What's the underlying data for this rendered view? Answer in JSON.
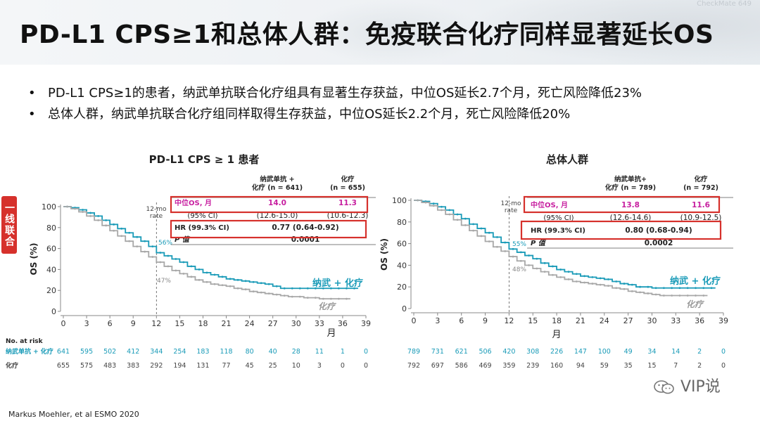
{
  "header": {
    "title": "PD-L1 CPS≥1和总体人群：免疫联合化疗同样显著延长OS",
    "watermark": "CheckMate 649"
  },
  "bullets": [
    "PD-L1 CPS≥1的患者，纳武单抗联合化疗组具有显著生存获益，中位OS延长2.7个月，死亡风险降低23%",
    "总体人群，纳武单抗联合化疗组同样取得生存获益，中位OS延长2.2个月，死亡风险降低20%"
  ],
  "side_tag": "一线联合",
  "footer": "Markus Moehler, et al  ESMO 2020",
  "wechat_label": "VIP说",
  "colors": {
    "nivo": "#1a9bb8",
    "chemo": "#a8a8a8",
    "highlight": "#d6312c",
    "median": "#c71fa0"
  },
  "chart_data": [
    {
      "type": "line",
      "title": "PD-L1 CPS ≥ 1 患者",
      "xlabel": "月",
      "ylabel": "OS (%)",
      "xlim": [
        0,
        39
      ],
      "ylim": [
        0,
        100
      ],
      "xticks": [
        0,
        3,
        6,
        9,
        12,
        15,
        18,
        21,
        24,
        27,
        30,
        33,
        36,
        39
      ],
      "yticks": [
        0,
        20,
        40,
        60,
        80,
        100
      ],
      "landmark_label": "12-mo\nrate",
      "landmark_values": [
        "56%",
        "47%"
      ],
      "series": [
        {
          "name": "纳武 + 化疗",
          "x": [
            0,
            1,
            2,
            3,
            4,
            5,
            6,
            7,
            8,
            9,
            10,
            11,
            12,
            13,
            14,
            15,
            16,
            17,
            18,
            19,
            20,
            21,
            22,
            23,
            24,
            25,
            26,
            27,
            28,
            29,
            30,
            31,
            32,
            33,
            34,
            35,
            36,
            37,
            38
          ],
          "y": [
            100,
            99,
            97,
            94,
            91,
            87,
            83,
            79,
            75,
            71,
            67,
            62,
            56,
            53,
            50,
            47,
            43,
            40,
            37,
            35,
            33,
            31,
            30,
            29,
            28,
            27,
            26,
            24,
            22,
            22,
            22,
            22,
            22,
            22,
            22,
            22,
            22,
            22,
            22
          ]
        },
        {
          "name": "化疗",
          "x": [
            0,
            1,
            2,
            3,
            4,
            5,
            6,
            7,
            8,
            9,
            10,
            11,
            12,
            13,
            14,
            15,
            16,
            17,
            18,
            19,
            20,
            21,
            22,
            23,
            24,
            25,
            26,
            27,
            28,
            29,
            30,
            31,
            32,
            33,
            34,
            35,
            36,
            37
          ],
          "y": [
            100,
            98,
            95,
            91,
            87,
            82,
            77,
            72,
            67,
            62,
            57,
            52,
            47,
            43,
            39,
            36,
            33,
            30,
            28,
            26,
            25,
            24,
            22,
            21,
            19,
            18,
            17,
            16,
            15,
            14,
            14,
            13,
            13,
            12,
            12,
            12,
            12,
            12
          ]
        }
      ],
      "table": {
        "headers": [
          "",
          "纳武单抗 +\n化疗 (n = 641)",
          "化疗\n(n = 655)"
        ],
        "rows": [
          [
            "中位OS, 月",
            "14.0",
            "11.3"
          ],
          [
            "(95% CI)",
            "(12.6-15.0)",
            "(10.6-12.3)"
          ],
          [
            "HR (99.3% CI)",
            "0.77 (0.64-0.92)",
            ""
          ],
          [
            "P 值",
            "0.0001",
            ""
          ]
        ]
      },
      "at_risk": {
        "title": "No. at risk",
        "rows": [
          {
            "label": "纳武单抗 + 化疗",
            "values": [
              641,
              595,
              502,
              412,
              344,
              254,
              183,
              118,
              80,
              40,
              28,
              11,
              1,
              0
            ]
          },
          {
            "label": "化疗",
            "values": [
              655,
              575,
              483,
              383,
              292,
              194,
              131,
              77,
              45,
              25,
              10,
              3,
              0,
              0
            ]
          }
        ]
      }
    },
    {
      "type": "line",
      "title": "总体人群",
      "xlabel": "月",
      "ylabel": "OS (%)",
      "xlim": [
        0,
        39
      ],
      "ylim": [
        0,
        100
      ],
      "xticks": [
        0,
        3,
        6,
        9,
        12,
        15,
        18,
        21,
        24,
        27,
        30,
        33,
        36,
        39
      ],
      "yticks": [
        0,
        20,
        40,
        60,
        80,
        100
      ],
      "landmark_label": "12-mo\nrate",
      "landmark_values": [
        "55%",
        "48%"
      ],
      "series": [
        {
          "name": "纳武 + 化疗",
          "x": [
            0,
            1,
            2,
            3,
            4,
            5,
            6,
            7,
            8,
            9,
            10,
            11,
            12,
            13,
            14,
            15,
            16,
            17,
            18,
            19,
            20,
            21,
            22,
            23,
            24,
            25,
            26,
            27,
            28,
            29,
            30,
            31,
            32,
            33,
            34,
            35,
            36,
            37,
            38
          ],
          "y": [
            100,
            99,
            97,
            94,
            91,
            87,
            83,
            78,
            74,
            70,
            66,
            61,
            55,
            52,
            49,
            46,
            42,
            39,
            36,
            34,
            32,
            30,
            29,
            28,
            27,
            25,
            23,
            22,
            20,
            20,
            19,
            19,
            19,
            19,
            19,
            19,
            19,
            19,
            19
          ]
        },
        {
          "name": "化疗",
          "x": [
            0,
            1,
            2,
            3,
            4,
            5,
            6,
            7,
            8,
            9,
            10,
            11,
            12,
            13,
            14,
            15,
            16,
            17,
            18,
            19,
            20,
            21,
            22,
            23,
            24,
            25,
            26,
            27,
            28,
            29,
            30,
            31,
            32,
            33,
            34,
            35,
            36,
            37
          ],
          "y": [
            100,
            98,
            95,
            91,
            87,
            82,
            77,
            72,
            67,
            62,
            57,
            53,
            48,
            44,
            40,
            37,
            34,
            31,
            29,
            27,
            25,
            24,
            23,
            22,
            21,
            19,
            18,
            16,
            15,
            14,
            13,
            12,
            12,
            12,
            12,
            12,
            12,
            12
          ]
        }
      ],
      "table": {
        "headers": [
          "",
          "纳武单抗+\n化疗 (n = 789)",
          "化疗\n(n = 792)"
        ],
        "rows": [
          [
            "中位OS, 月",
            "13.8",
            "11.6"
          ],
          [
            "(95% CI)",
            "(12.6-14.6)",
            "(10.9-12.5)"
          ],
          [
            "HR (99.3% CI)",
            "0.80 (0.68-0.94)",
            ""
          ],
          [
            "P 值",
            "0.0002",
            ""
          ]
        ]
      },
      "at_risk": {
        "title": "",
        "rows": [
          {
            "label": "",
            "values": [
              789,
              731,
              621,
              506,
              420,
              308,
              226,
              147,
              100,
              49,
              34,
              14,
              2,
              0
            ]
          },
          {
            "label": "",
            "values": [
              792,
              697,
              586,
              469,
              359,
              239,
              160,
              94,
              59,
              35,
              15,
              7,
              2,
              0
            ]
          }
        ]
      }
    }
  ]
}
